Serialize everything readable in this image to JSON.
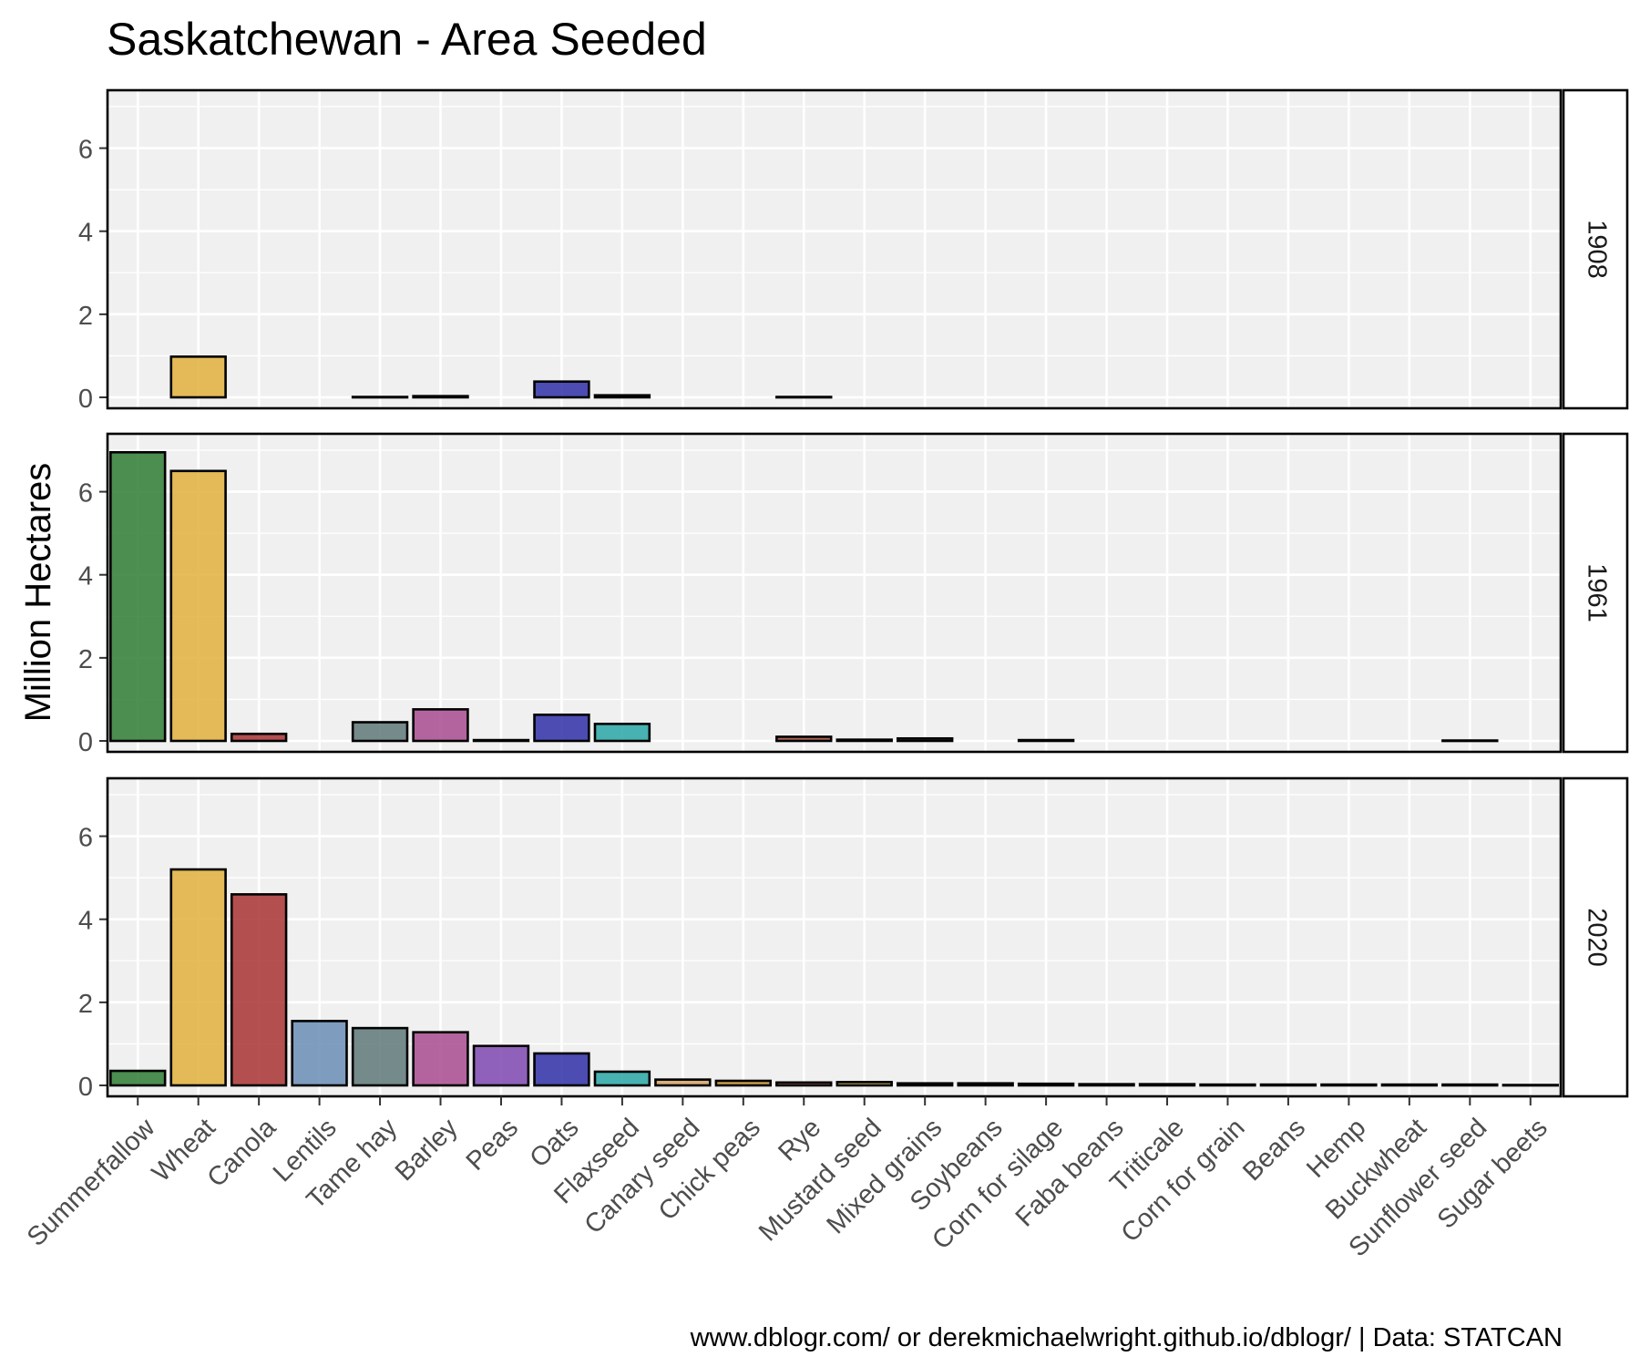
{
  "chart_data": {
    "type": "bar",
    "title": "Saskatchewan - Area Seeded",
    "ylabel": "Million Hectares",
    "xlabel": "",
    "caption": "www.dblogr.com/ or derekmichaelwright.github.io/dblogr/ | Data: STATCAN",
    "ylim": [
      0,
      7.0
    ],
    "y_ticks": [
      0,
      2,
      4,
      6
    ],
    "grid": true,
    "legend": "none",
    "categories": [
      "Summerfallow",
      "Wheat",
      "Canola",
      "Lentils",
      "Tame hay",
      "Barley",
      "Peas",
      "Oats",
      "Flaxseed",
      "Canary seed",
      "Chick peas",
      "Rye",
      "Mustard seed",
      "Mixed grains",
      "Soybeans",
      "Corn for silage",
      "Faba beans",
      "Triticale",
      "Corn for grain",
      "Beans",
      "Hemp",
      "Buckwheat",
      "Sunflower seed",
      "Sugar beets"
    ],
    "colors": [
      "#2e7d32",
      "#e0b03c",
      "#a93232",
      "#6a8db5",
      "#5f7878",
      "#a84b8f",
      "#7f48b0",
      "#2f2fa8",
      "#2aa6a6",
      "#d4a26a",
      "#c8902c",
      "#a04a38",
      "#b8a040",
      "#3e8c3e",
      "#3e6e3e",
      "#7da87d",
      "#5a8a40",
      "#a0a050",
      "#c8b060",
      "#b08060",
      "#4a8a4a",
      "#6e5040",
      "#d8b050",
      "#a07050"
    ],
    "series": [
      {
        "name": "1908",
        "values": [
          0,
          0.98,
          0,
          0,
          0.01,
          0.03,
          0,
          0.38,
          0.05,
          0,
          0,
          0.01,
          0,
          0,
          0,
          0,
          0,
          0,
          0,
          0,
          0,
          0,
          0,
          0
        ]
      },
      {
        "name": "1961",
        "values": [
          6.95,
          6.5,
          0.17,
          0,
          0.45,
          0.76,
          0.02,
          0.63,
          0.41,
          0,
          0,
          0.1,
          0.03,
          0.06,
          0,
          0.02,
          0,
          0,
          0,
          0,
          0,
          0,
          0.01,
          0
        ]
      },
      {
        "name": "2020",
        "values": [
          0.35,
          5.2,
          4.6,
          1.55,
          1.38,
          1.28,
          0.95,
          0.77,
          0.33,
          0.14,
          0.11,
          0.07,
          0.08,
          0.05,
          0.05,
          0.04,
          0.03,
          0.03,
          0.02,
          0.02,
          0.02,
          0.02,
          0.02,
          0.01
        ]
      }
    ]
  }
}
